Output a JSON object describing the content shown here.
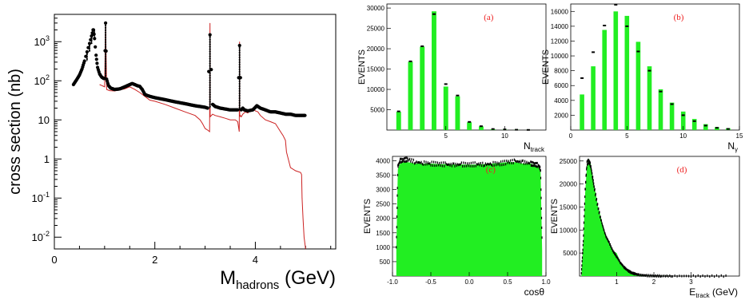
{
  "colors": {
    "data": "#000000",
    "model": "#cc2222",
    "fill": "#22ee22",
    "panel_label": "#ee2222",
    "frame": "#000000"
  },
  "chart_data": [
    {
      "id": "main",
      "type": "line",
      "ylabel": "cross section (nb)",
      "xlabel_main": "M",
      "xlabel_sub": "hadrons",
      "xlabel_unit": "(GeV)",
      "yscale": "log",
      "xlim": [
        0,
        5.6
      ],
      "ylim": [
        0.005,
        5000
      ],
      "xticks": [
        "0",
        "2",
        "4"
      ],
      "xtick_values": [
        0,
        2,
        4
      ],
      "ytick_values": [
        1000,
        100,
        10,
        1,
        0.1,
        0.01
      ],
      "ytick_labels": [
        {
          "base": "10",
          "exp": "3"
        },
        {
          "base": "10",
          "exp": "2"
        },
        {
          "base": "10",
          "exp": ""
        },
        {
          "base": "1",
          "exp": ""
        },
        {
          "base": "10",
          "exp": "-1"
        },
        {
          "base": "10",
          "exp": "-2"
        }
      ],
      "series": [
        {
          "style": "points",
          "x": [
            0.38,
            0.45,
            0.5,
            0.55,
            0.6,
            0.65,
            0.7,
            0.74,
            0.77,
            0.78,
            0.8,
            0.83,
            0.86,
            0.9,
            0.94,
            0.98,
            1.0,
            1.019,
            1.04,
            1.08,
            1.12,
            1.2,
            1.3,
            1.4,
            1.5,
            1.55,
            1.6,
            1.65,
            1.7,
            1.75,
            1.8,
            1.85,
            1.9,
            2.0,
            2.2,
            2.4,
            2.6,
            2.8,
            3.0,
            3.05,
            3.097,
            3.15,
            3.2,
            3.3,
            3.4,
            3.5,
            3.6,
            3.65,
            3.686,
            3.72,
            3.75,
            3.78,
            3.85,
            3.95,
            4.03,
            4.1,
            4.2,
            4.3,
            4.4,
            4.5,
            4.6,
            4.7,
            4.8,
            5.0
          ],
          "y": [
            80,
            110,
            140,
            200,
            320,
            550,
            900,
            1400,
            2000,
            2000,
            1200,
            450,
            220,
            150,
            125,
            115,
            115,
            3000,
            110,
            75,
            65,
            60,
            62,
            70,
            80,
            85,
            80,
            75,
            72,
            60,
            45,
            42,
            40,
            37,
            33,
            29,
            26,
            23,
            21,
            20,
            1500,
            25,
            22,
            20,
            19,
            18,
            18,
            18,
            800,
            18,
            20,
            18,
            17,
            18,
            23,
            20,
            18,
            16,
            16,
            15,
            14,
            14,
            13,
            13
          ]
        },
        {
          "style": "line",
          "x": [
            0.9,
            1.0,
            1.019,
            1.04,
            1.1,
            1.2,
            1.3,
            1.4,
            1.5,
            1.6,
            1.7,
            1.8,
            1.9,
            2.0,
            2.2,
            2.4,
            2.6,
            2.8,
            2.9,
            2.95,
            3.0,
            3.05,
            3.09,
            3.097,
            3.1,
            3.15,
            3.2,
            3.3,
            3.4,
            3.5,
            3.6,
            3.65,
            3.68,
            3.686,
            3.69,
            3.7,
            3.72,
            3.75,
            3.8,
            3.85,
            3.9,
            3.95,
            4.0,
            4.05,
            4.1,
            4.2,
            4.3,
            4.4,
            4.5,
            4.55,
            4.6,
            4.62,
            4.7,
            4.8,
            4.9,
            4.92,
            4.93,
            4.95,
            4.97,
            5.0
          ],
          "y": [
            80,
            70,
            3000,
            60,
            56,
            55,
            58,
            62,
            70,
            60,
            50,
            40,
            32,
            30,
            25,
            20,
            16,
            13,
            10,
            8,
            6,
            5.5,
            5,
            3000,
            12,
            14,
            13,
            12,
            11,
            10,
            10,
            9,
            5,
            1000,
            12,
            13,
            12,
            14,
            16,
            15,
            18,
            20,
            17,
            16,
            13,
            10,
            9,
            8,
            5,
            4,
            3,
            1.5,
            0.6,
            0.5,
            0.45,
            0.4,
            0.1,
            0.03,
            0.01,
            0.005
          ]
        }
      ]
    },
    {
      "id": "a",
      "type": "bar",
      "panel_label": "(a)",
      "ylabel": "EVENTS",
      "xlabel_main": "N",
      "xlabel_sub": "track",
      "xlim": [
        0,
        13.5
      ],
      "ylim": [
        0,
        31000
      ],
      "xticks": [
        "5",
        "10"
      ],
      "xtick_values": [
        5,
        10
      ],
      "yticks": [
        "5000",
        "10000",
        "15000",
        "20000",
        "25000",
        "30000"
      ],
      "ytick_values": [
        5000,
        10000,
        15000,
        20000,
        25000,
        30000
      ],
      "categories": [
        "1",
        "2",
        "3",
        "4",
        "5",
        "6",
        "7",
        "8",
        "9",
        "10",
        "11",
        "12"
      ],
      "values": [
        4500,
        16800,
        20500,
        29200,
        10700,
        8300,
        1900,
        900,
        200,
        100,
        50,
        20
      ],
      "points": [
        4600,
        16900,
        20600,
        28500,
        11300,
        8500,
        2000,
        950,
        250,
        150,
        80,
        40
      ]
    },
    {
      "id": "b",
      "type": "bar",
      "panel_label": "(b)",
      "ylabel": "EVENTS",
      "xlabel_main": "N",
      "xlabel_sub": "γ",
      "xlim": [
        0,
        15
      ],
      "ylim": [
        0,
        17000
      ],
      "xticks": [
        "0",
        "5",
        "10",
        "15"
      ],
      "xtick_values": [
        0,
        5,
        10,
        15
      ],
      "yticks": [
        "2000",
        "4000",
        "6000",
        "8000",
        "10000",
        "12000",
        "14000",
        "16000"
      ],
      "ytick_values": [
        2000,
        4000,
        6000,
        8000,
        10000,
        12000,
        14000,
        16000
      ],
      "categories": [
        "1",
        "2",
        "3",
        "4",
        "5",
        "6",
        "7",
        "8",
        "9",
        "10",
        "11",
        "12",
        "13",
        "14"
      ],
      "values": [
        4800,
        8600,
        13500,
        16000,
        15400,
        11900,
        8600,
        5500,
        3700,
        2500,
        1500,
        800,
        400,
        250
      ],
      "points": [
        7000,
        10500,
        14100,
        16900,
        14000,
        10600,
        8000,
        5200,
        3500,
        2000,
        1200,
        600,
        300,
        150
      ]
    },
    {
      "id": "c",
      "type": "area",
      "panel_label": "(c)",
      "ylabel": "EVENTS",
      "xlabel_main": "cosθ",
      "xlim": [
        -1.0,
        1.0
      ],
      "ylim": [
        0,
        4150
      ],
      "xticks": [
        "-1.0",
        "-0.5",
        "0.0",
        "0.5",
        "1.0"
      ],
      "xtick_values": [
        -1.0,
        -0.5,
        0.0,
        0.5,
        1.0
      ],
      "yticks": [
        "500",
        "1000",
        "1500",
        "2000",
        "2500",
        "3000",
        "3500",
        "4000"
      ],
      "ytick_values": [
        500,
        1000,
        1500,
        2000,
        2500,
        3000,
        3500,
        4000
      ],
      "x": [
        -0.95,
        -0.93,
        -0.9,
        -0.85,
        -0.8,
        -0.7,
        -0.6,
        -0.5,
        -0.4,
        -0.3,
        -0.2,
        -0.1,
        0.0,
        0.1,
        0.2,
        0.3,
        0.4,
        0.5,
        0.6,
        0.7,
        0.8,
        0.85,
        0.9,
        0.93,
        0.95
      ],
      "values": [
        900,
        3700,
        3900,
        3950,
        3950,
        3900,
        3900,
        3900,
        3880,
        3880,
        3870,
        3870,
        3860,
        3870,
        3880,
        3900,
        3920,
        3950,
        3950,
        3900,
        3900,
        3850,
        3800,
        3600,
        900
      ],
      "points": [
        1000,
        3800,
        4000,
        4020,
        4050,
        3950,
        3920,
        3900,
        3880,
        3870,
        3850,
        3870,
        3860,
        3880,
        3870,
        3890,
        3900,
        3950,
        3980,
        3950,
        3900,
        3870,
        3850,
        3700,
        1000
      ]
    },
    {
      "id": "d",
      "type": "area",
      "panel_label": "(d)",
      "ylabel": "EVENTS",
      "xlabel_main": "E",
      "xlabel_sub": "track",
      "xlabel_unit": "(GeV)",
      "xlim": [
        0,
        4.3
      ],
      "ylim": [
        0,
        26000
      ],
      "xticks": [
        "1",
        "2",
        "3"
      ],
      "xtick_values": [
        1,
        2,
        3
      ],
      "yticks": [
        "5000",
        "10000",
        "15000",
        "20000",
        "25000"
      ],
      "ytick_values": [
        5000,
        10000,
        15000,
        20000,
        25000
      ],
      "x": [
        0.05,
        0.1,
        0.15,
        0.2,
        0.25,
        0.3,
        0.35,
        0.4,
        0.5,
        0.6,
        0.7,
        0.8,
        0.9,
        1.0,
        1.1,
        1.2,
        1.3,
        1.4,
        1.5,
        1.6,
        1.8,
        2.0,
        2.2,
        2.5,
        3.0,
        3.5,
        4.0
      ],
      "values": [
        500,
        7000,
        18000,
        24000,
        25500,
        24500,
        22000,
        19500,
        15000,
        12000,
        9000,
        7000,
        5500,
        5000,
        3000,
        2000,
        1300,
        800,
        500,
        300,
        120,
        50,
        20,
        5,
        1,
        0,
        0
      ],
      "points": [
        600,
        7500,
        18500,
        24500,
        25000,
        24000,
        21500,
        19000,
        14800,
        11500,
        8800,
        7200,
        5400,
        4200,
        2900,
        1900,
        1200,
        700,
        450,
        250,
        100,
        40,
        15,
        5,
        1,
        0,
        0
      ]
    }
  ]
}
